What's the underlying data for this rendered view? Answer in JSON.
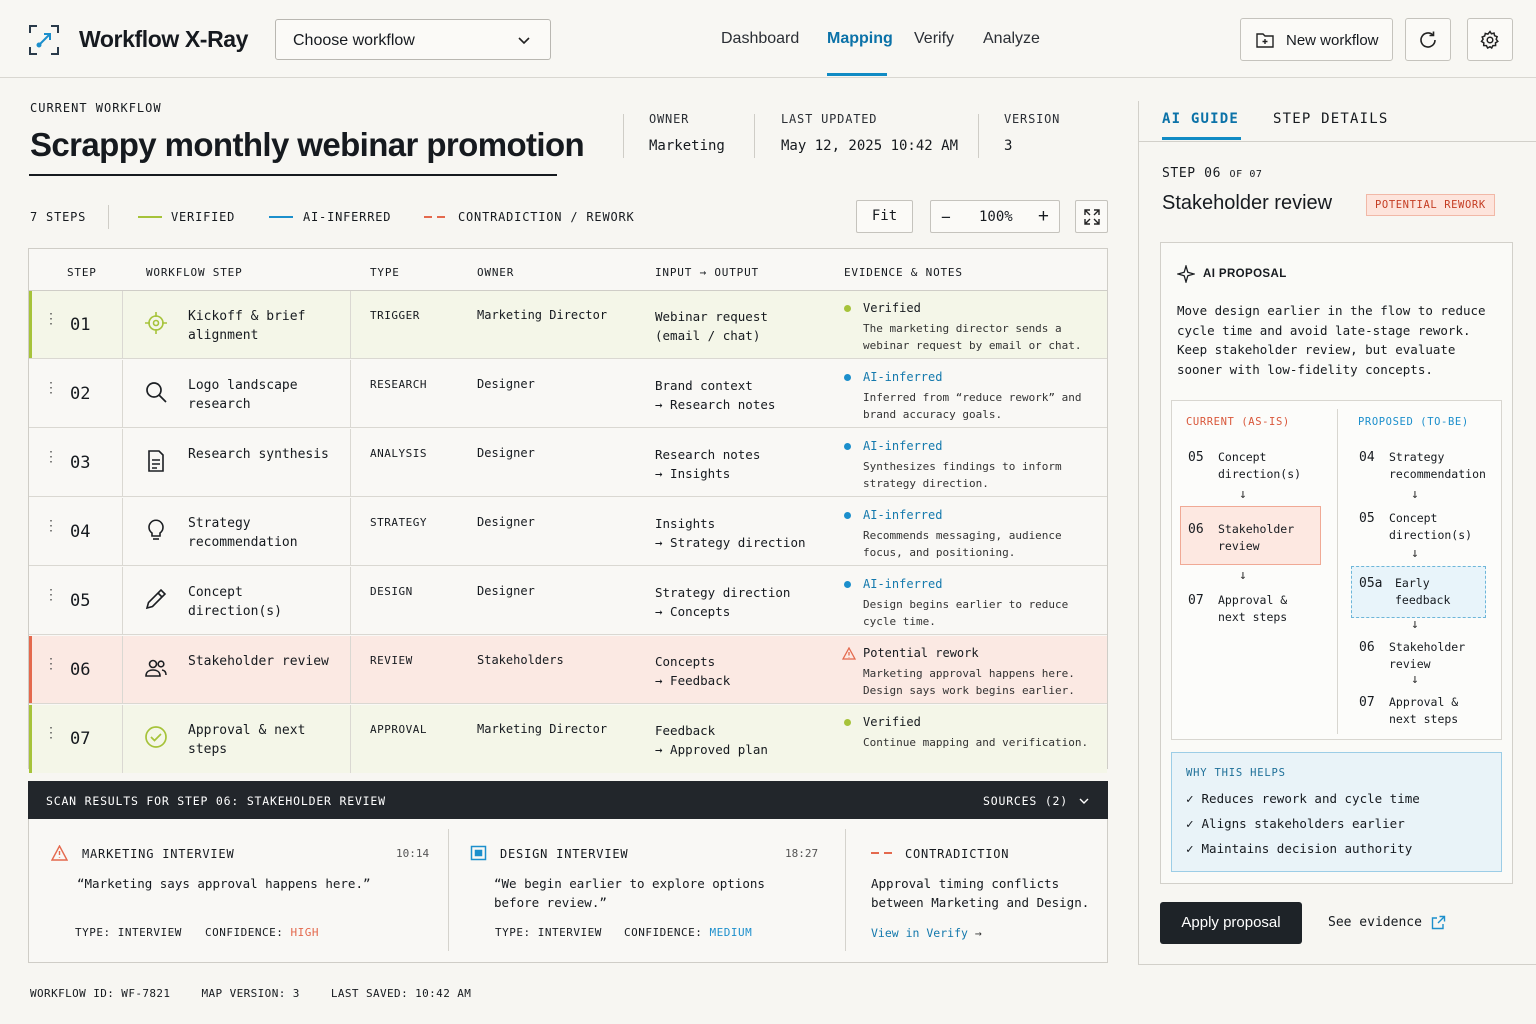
{
  "app": {
    "title": "Workflow X-Ray"
  },
  "workflow_select": {
    "label": "Choose workflow"
  },
  "nav": [
    {
      "label": "Dashboard",
      "active": false
    },
    {
      "label": "Mapping",
      "active": true
    },
    {
      "label": "Verify",
      "active": false
    },
    {
      "label": "Analyze",
      "active": false
    }
  ],
  "toolbar": {
    "new_workflow": "New workflow",
    "refresh_icon": "refresh-icon",
    "settings_icon": "gear-icon"
  },
  "header": {
    "label": "CURRENT WORKFLOW",
    "title": "Scrappy monthly webinar promotion",
    "owner_label": "OWNER",
    "owner": "Marketing",
    "updated_label": "LAST UPDATED",
    "updated": "May 12, 2025 10:42 AM",
    "version_label": "VERSION",
    "version": "3"
  },
  "legend": {
    "steps": "7 STEPS",
    "verified": "VERIFIED",
    "ai_inferred": "AI-INFERRED",
    "contradiction": "CONTRADICTION / REWORK"
  },
  "colors": {
    "verified": "#a6c33a",
    "ai_inferred": "#1c8fcc",
    "rework": "#e4694d",
    "accent": "#118bc4"
  },
  "controls": {
    "fit": "Fit",
    "zoom": "100%"
  },
  "table": {
    "headers": {
      "step": "STEP",
      "workflow_step": "WORKFLOW STEP",
      "type": "TYPE",
      "owner": "OWNER",
      "io": "INPUT → OUTPUT",
      "evidence": "EVIDENCE & NOTES"
    },
    "rows": [
      {
        "num": "01",
        "icon": "target-icon",
        "step": "Kickoff & brief alignment",
        "type": "TRIGGER",
        "owner": "Marketing Director",
        "io1": "Webinar request",
        "io2": "(email / chat)",
        "status": "Verified",
        "note": "The marketing director sends a webinar request by email or chat."
      },
      {
        "num": "02",
        "icon": "search-icon",
        "step": "Logo landscape research",
        "type": "RESEARCH",
        "owner": "Designer",
        "io1": "Brand context",
        "io2": "→ Research notes",
        "status": "AI-inferred",
        "note": "Inferred from “reduce rework” and brand accuracy goals."
      },
      {
        "num": "03",
        "icon": "document-icon",
        "step": "Research synthesis",
        "type": "ANALYSIS",
        "owner": "Designer",
        "io1": "Research notes",
        "io2": "→ Insights",
        "status": "AI-inferred",
        "note": "Synthesizes findings to inform strategy direction."
      },
      {
        "num": "04",
        "icon": "lightbulb-icon",
        "step": "Strategy recommendation",
        "type": "STRATEGY",
        "owner": "Designer",
        "io1": "Insights",
        "io2": "→ Strategy direction",
        "status": "AI-inferred",
        "note": "Recommends messaging, audience focus, and positioning."
      },
      {
        "num": "05",
        "icon": "pencil-icon",
        "step": "Concept direction(s)",
        "type": "DESIGN",
        "owner": "Designer",
        "io1": "Strategy direction",
        "io2": "→ Concepts",
        "status": "AI-inferred",
        "note": "Design begins earlier to reduce cycle time."
      },
      {
        "num": "06",
        "icon": "people-icon",
        "step": "Stakeholder review",
        "type": "REVIEW",
        "owner": "Stakeholders",
        "io1": "Concepts",
        "io2": "→ Feedback",
        "status": "Potential rework",
        "note": "Marketing approval happens here. Design says work begins earlier."
      },
      {
        "num": "07",
        "icon": "check-circle-icon",
        "step": "Approval & next steps",
        "type": "APPROVAL",
        "owner": "Marketing Director",
        "io1": "Feedback",
        "io2": "→ Approved plan",
        "status": "Verified",
        "note": "Continue mapping and verification."
      }
    ]
  },
  "scan": {
    "title": "SCAN RESULTS FOR STEP 06: STAKEHOLDER REVIEW",
    "sources": "SOURCES (2)",
    "cards": [
      {
        "title": "MARKETING INTERVIEW",
        "time": "10:14",
        "quote": "“Marketing says approval happens here.”",
        "type": "TYPE: INTERVIEW",
        "conf_label": "CONFIDENCE:",
        "conf": "HIGH"
      },
      {
        "title": "DESIGN INTERVIEW",
        "time": "18:27",
        "quote": "“We begin earlier to explore options before review.”",
        "type": "TYPE: INTERVIEW",
        "conf_label": "CONFIDENCE:",
        "conf": "MEDIUM"
      },
      {
        "title": "CONTRADICTION",
        "quote": "Approval timing conflicts between Marketing and Design.",
        "link": "View in Verify"
      }
    ]
  },
  "footer": {
    "id": "WORKFLOW ID: WF-7821",
    "map": "MAP VERSION: 3",
    "saved": "LAST SAVED: 10:42 AM"
  },
  "panel": {
    "tabs": [
      "AI GUIDE",
      "STEP DETAILS"
    ],
    "step_label": "STEP",
    "step_num": "06",
    "step_of": "OF 07",
    "title": "Stakeholder review",
    "badge": "POTENTIAL REWORK",
    "ai_label": "AI PROPOSAL",
    "ai_text": "Move design earlier in the flow to reduce cycle time and avoid late-stage rework. Keep stakeholder review, but evaluate sooner with low-fidelity concepts.",
    "current_label": "CURRENT (AS-IS)",
    "proposed_label": "PROPOSED (TO-BE)",
    "current": [
      {
        "n": "05",
        "t1": "Concept",
        "t2": "direction(s)"
      },
      {
        "n": "06",
        "t1": "Stakeholder",
        "t2": "review"
      },
      {
        "n": "07",
        "t1": "Approval &",
        "t2": "next steps"
      }
    ],
    "proposed": [
      {
        "n": "04",
        "t1": "Strategy",
        "t2": "recommendation"
      },
      {
        "n": "05",
        "t1": "Concept",
        "t2": "direction(s)"
      },
      {
        "n": "05a",
        "t1": "Early",
        "t2": "feedback"
      },
      {
        "n": "06",
        "t1": "Stakeholder",
        "t2": "review"
      },
      {
        "n": "07",
        "t1": "Approval &",
        "t2": "next steps"
      }
    ],
    "why_label": "WHY THIS HELPS",
    "why": [
      "Reduces rework and cycle time",
      "Aligns stakeholders earlier",
      "Maintains decision authority"
    ],
    "apply": "Apply proposal",
    "see_evidence": "See evidence"
  }
}
